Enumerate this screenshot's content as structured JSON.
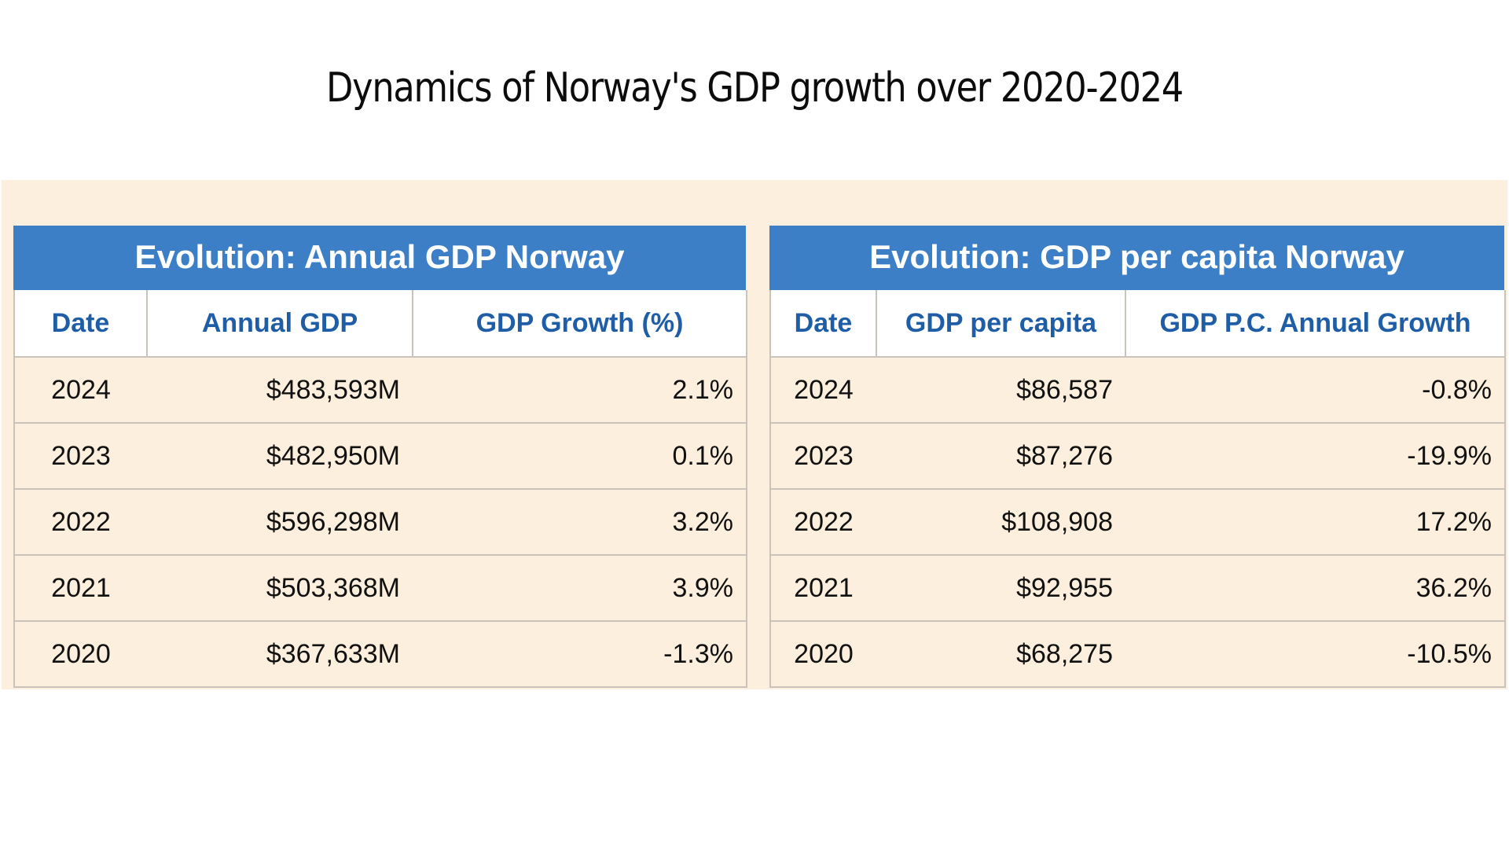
{
  "page": {
    "title": "Dynamics of Norway's GDP growth over 2020-2024"
  },
  "colors": {
    "header_blue": "#3c7fc6",
    "column_header_text": "#1f5ea7",
    "row_background": "#fdefdd",
    "border": "#c9c3bc"
  },
  "chart_data": [
    {
      "type": "table",
      "title": "Evolution: Annual GDP Norway",
      "columns": [
        "Date",
        "Annual GDP",
        "GDP Growth (%)"
      ],
      "rows": [
        {
          "date": "2024",
          "value": "$483,593M",
          "growth": "2.1%"
        },
        {
          "date": "2023",
          "value": "$482,950M",
          "growth": "0.1%"
        },
        {
          "date": "2022",
          "value": "$596,298M",
          "growth": "3.2%"
        },
        {
          "date": "2021",
          "value": "$503,368M",
          "growth": "3.9%"
        },
        {
          "date": "2020",
          "value": "$367,633M",
          "growth": "-1.3%"
        }
      ]
    },
    {
      "type": "table",
      "title": "Evolution: GDP per capita Norway",
      "columns": [
        "Date",
        "GDP per capita",
        "GDP P.C. Annual Growth"
      ],
      "rows": [
        {
          "date": "2024",
          "value": "$86,587",
          "growth": "-0.8%"
        },
        {
          "date": "2023",
          "value": "$87,276",
          "growth": "-19.9%"
        },
        {
          "date": "2022",
          "value": "$108,908",
          "growth": "17.2%"
        },
        {
          "date": "2021",
          "value": "$92,955",
          "growth": "36.2%"
        },
        {
          "date": "2020",
          "value": "$68,275",
          "growth": "-10.5%"
        }
      ]
    }
  ]
}
